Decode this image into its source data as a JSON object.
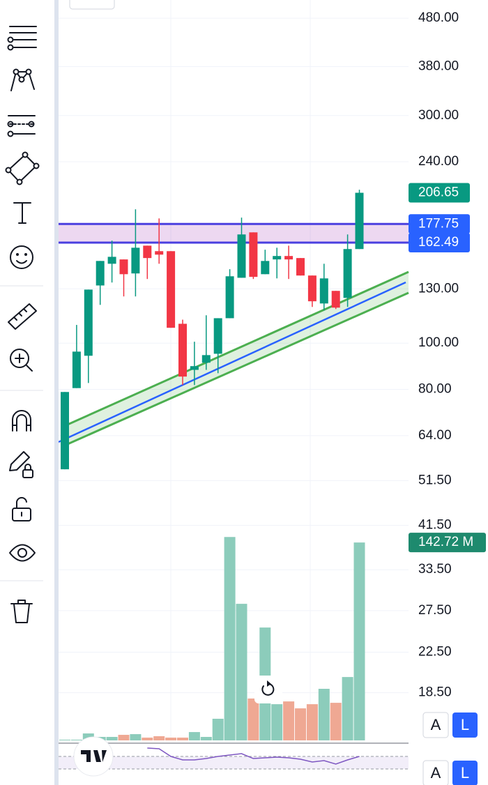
{
  "chart_data": {
    "type": "candlestick",
    "open": [
      54.4,
      80.5,
      94.1,
      132.1,
      146.7,
      149.8,
      140.0,
      160.1,
      155.9,
      155.9,
      109.8,
      87.9,
      91.0,
      95.0,
      112.8,
      137.1,
      170.7,
      139.5,
      149.8,
      152.3,
      150.8,
      138.6,
      121.1,
      128.7,
      124.4,
      157.5
    ],
    "high": [
      79.0,
      109.2,
      129.5,
      148.7,
      164.0,
      149.8,
      190.8,
      160.1,
      182.6,
      155.9,
      112.0,
      100.7,
      114.4,
      112.8,
      142.9,
      183.3,
      170.7,
      157.0,
      158.5,
      160.1,
      150.8,
      138.6,
      146.7,
      128.7,
      169.0,
      209.7
    ],
    "low": [
      54.4,
      80.5,
      82.5,
      120.3,
      134.0,
      125.3,
      125.3,
      136.3,
      146.7,
      107.7,
      81.7,
      81.7,
      87.9,
      86.5,
      112.8,
      137.1,
      136.3,
      139.5,
      136.7,
      136.3,
      138.6,
      119.1,
      117.1,
      117.9,
      119.1,
      157.5
    ],
    "close": [
      79.0,
      96.0,
      129.5,
      148.7,
      151.7,
      139.5,
      158.5,
      150.8,
      153.3,
      107.7,
      85.1,
      89.5,
      94.4,
      112.8,
      138.1,
      169.0,
      137.7,
      148.7,
      152.3,
      149.8,
      138.6,
      122.4,
      136.7,
      118.7,
      157.5,
      206.65
    ],
    "up_color": "#089981",
    "down_color": "#f23645",
    "log_scale": true,
    "ylim": [
      14.7,
      524
    ],
    "yticks": [
      {
        "value": 480,
        "label": "480.00"
      },
      {
        "value": 380,
        "label": "380.00"
      },
      {
        "value": 300,
        "label": "300.00"
      },
      {
        "value": 240,
        "label": "240.00"
      },
      {
        "value": 130,
        "label": "130.00"
      },
      {
        "value": 100,
        "label": "100.00"
      },
      {
        "value": 80,
        "label": "80.00"
      },
      {
        "value": 64,
        "label": "64.00"
      },
      {
        "value": 51.5,
        "label": "51.50"
      },
      {
        "value": 41.5,
        "label": "41.50"
      },
      {
        "value": 33.5,
        "label": "33.50"
      },
      {
        "value": 27.5,
        "label": "27.50"
      },
      {
        "value": 22.5,
        "label": "22.50"
      },
      {
        "value": 18.5,
        "label": "18.50"
      }
    ],
    "grid": true,
    "volume": [
      0.5,
      0.5,
      5.0,
      2.5,
      2.5,
      4.0,
      4.5,
      2.0,
      3.0,
      2.0,
      2.0,
      6.0,
      2.5,
      15.6,
      146.7,
      98.5,
      30.2,
      81.4,
      26.1,
      28.1,
      23.1,
      26.1,
      37.2,
      27.1,
      45.7,
      142.72
    ],
    "volume_ylim": [
      0,
      534
    ],
    "volume_up_color": "#8cccbb",
    "volume_down_color": "#efa893",
    "price_labels": [
      {
        "value": 206.65,
        "label": "206.65",
        "color": "#089981"
      },
      {
        "value": 177.75,
        "label": "177.75",
        "color": "#2962ff"
      },
      {
        "value": 162.49,
        "label": "162.49",
        "color": "#2962ff"
      }
    ],
    "volume_label": {
      "value": 142.72,
      "label": "142.72 M",
      "color": "#1e8a6e"
    },
    "rectangle": {
      "top": 177.75,
      "bottom": 162.49
    },
    "rsi": {
      "values": [
        null,
        null,
        null,
        null,
        null,
        null,
        null,
        96.7,
        94.4,
        70,
        58.9,
        58.9,
        63.3,
        70,
        74.4,
        78.9,
        63.3,
        65.6,
        67.8,
        65.6,
        61.1,
        52.2,
        56.7,
        45.6,
        58.9,
        70
      ],
      "ylim": [
        0,
        100
      ],
      "levels": [
        70,
        30
      ],
      "color": "#7e57c2"
    }
  },
  "ui": {
    "scale_buttons": [
      [
        "A",
        "L"
      ],
      [
        "A",
        "L"
      ]
    ]
  }
}
